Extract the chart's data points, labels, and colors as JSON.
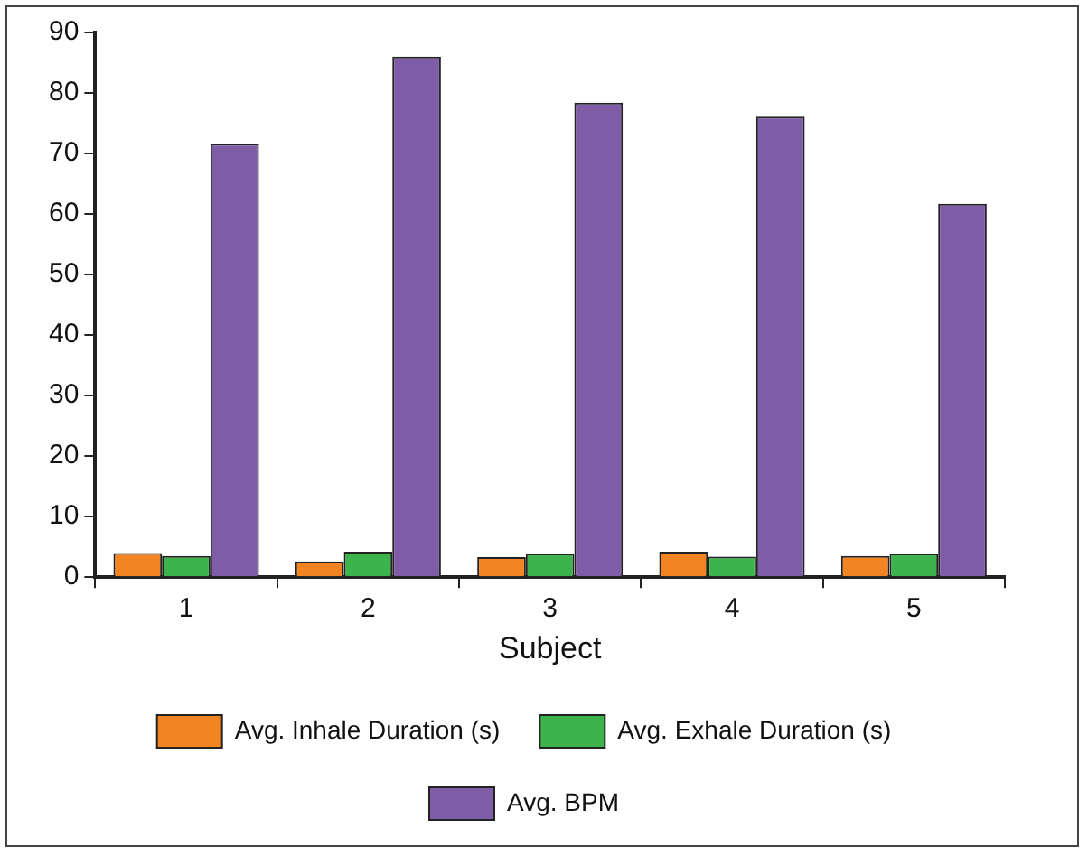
{
  "chart_data": {
    "type": "bar",
    "xlabel": "Subject",
    "categories": [
      "1",
      "2",
      "3",
      "4",
      "5"
    ],
    "series": [
      {
        "name": "Avg. Inhale Duration (s)",
        "color": "#f28522",
        "values": [
          4.0,
          2.6,
          3.3,
          4.2,
          3.5
        ]
      },
      {
        "name": "Avg. Exhale Duration (s)",
        "color": "#3cb44b",
        "values": [
          3.5,
          4.2,
          3.9,
          3.4,
          3.9
        ]
      },
      {
        "name": "Avg. BPM",
        "color": "#7e5ca6",
        "values": [
          71.6,
          86.0,
          78.4,
          76.1,
          61.7
        ]
      }
    ],
    "ylim": [
      0,
      90
    ],
    "yticks": [
      0,
      10,
      20,
      30,
      40,
      50,
      60,
      70,
      80,
      90
    ],
    "grid": false,
    "legend": "bottom"
  }
}
